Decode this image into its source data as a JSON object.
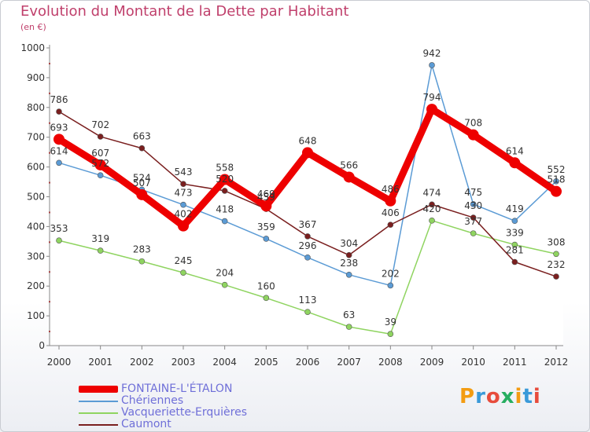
{
  "header": {
    "title": "Evolution du Montant de la Dette par Habitant",
    "subtitle": "(en €)"
  },
  "logo": {
    "text": "Proxiti",
    "colors": [
      "#f39c12",
      "#3a9ad9",
      "#e74c3c",
      "#27ae60",
      "#f39c12",
      "#3a9ad9",
      "#e74c3c"
    ]
  },
  "chart_data": {
    "type": "line",
    "title": "Evolution du Montant de la Dette par Habitant",
    "ylabel": "(en €)",
    "x": [
      "2000",
      "2001",
      "2002",
      "2003",
      "2004",
      "2005",
      "2006",
      "2007",
      "2008",
      "2009",
      "2010",
      "2011",
      "2012"
    ],
    "ylim": [
      0,
      1000
    ],
    "yticks": [
      0,
      100,
      200,
      300,
      400,
      500,
      600,
      700,
      800,
      900,
      1000
    ],
    "legend_position": "bottom-left",
    "series": [
      {
        "name": "FONTAINE-L'ÉTALON",
        "color": "#ee0000",
        "emphasis": true,
        "values": [
          693,
          607,
          507,
          402,
          558,
          469,
          648,
          566,
          486,
          794,
          708,
          614,
          518
        ]
      },
      {
        "name": "Chériennes",
        "color": "#5b9bd5",
        "emphasis": false,
        "values": [
          614,
          572,
          524,
          473,
          418,
          359,
          296,
          238,
          202,
          942,
          475,
          419,
          552
        ]
      },
      {
        "name": "Vacqueriette-Erquières",
        "color": "#8fd460",
        "emphasis": false,
        "values": [
          353,
          319,
          283,
          245,
          204,
          160,
          113,
          63,
          39,
          420,
          377,
          339,
          308
        ]
      },
      {
        "name": "Caumont",
        "color": "#7a1f1f",
        "emphasis": false,
        "values": [
          786,
          702,
          663,
          543,
          520,
          459,
          367,
          304,
          406,
          474,
          430,
          281,
          232
        ]
      }
    ]
  }
}
